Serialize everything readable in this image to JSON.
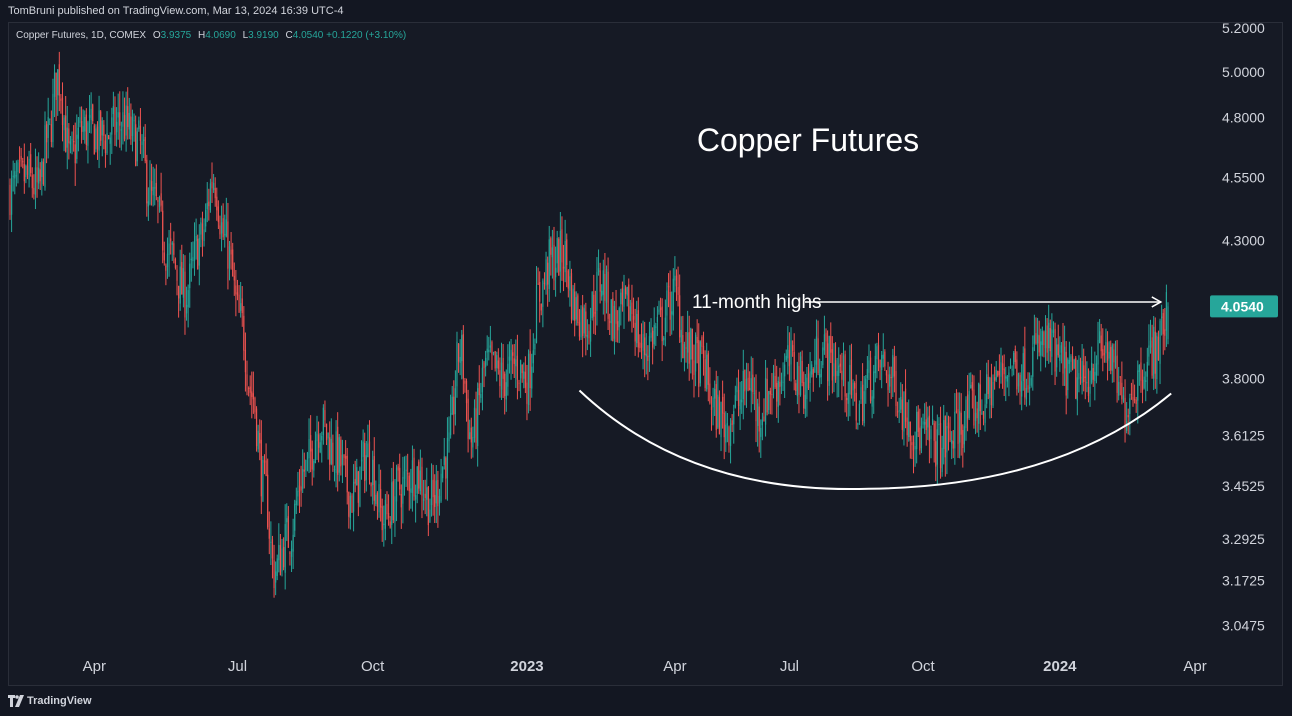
{
  "header": {
    "published_text": "TomBruni published on TradingView.com, Mar 13, 2024 16:39 UTC-4"
  },
  "legend": {
    "symbol": "Copper Futures, 1D, COMEX",
    "o_label": "O",
    "o_value": "3.9375",
    "h_label": "H",
    "h_value": "4.0690",
    "l_label": "L",
    "l_value": "3.9190",
    "c_label": "C",
    "c_value": "4.0540",
    "change": "+0.1220 (+3.10%)"
  },
  "footer": {
    "brand": "TradingView",
    "logo_icon": "tradingview-logo-icon"
  },
  "colors": {
    "up": "#26a69a",
    "down": "#ef5350",
    "background": "#161a25",
    "text": "#d1d4dc",
    "price_tag": "#26a69a"
  },
  "chart_data": {
    "type": "candlestick",
    "title": "Copper Futures",
    "annotation": "11-month highs",
    "last_price": "4.0540",
    "y_ticks": [
      "5.2000",
      "5.0000",
      "4.8000",
      "4.5500",
      "4.3000",
      "3.8000",
      "3.6125",
      "3.4525",
      "3.2925",
      "3.1725",
      "3.0475"
    ],
    "x_ticks": [
      "Apr",
      "Jul",
      "Oct",
      "2023",
      "Apr",
      "Jul",
      "Oct",
      "2024",
      "Apr"
    ],
    "x_ticks_bold": [
      false,
      false,
      false,
      true,
      false,
      false,
      false,
      true,
      false
    ],
    "ylim": [
      3.0,
      5.2
    ],
    "scale": "log",
    "anchors": [
      [
        0,
        4.5
      ],
      [
        10,
        4.55
      ],
      [
        18,
        4.5
      ],
      [
        24,
        4.72
      ],
      [
        30,
        4.98
      ],
      [
        38,
        4.62
      ],
      [
        45,
        4.75
      ],
      [
        60,
        4.72
      ],
      [
        70,
        4.78
      ],
      [
        80,
        4.7
      ],
      [
        90,
        4.45
      ],
      [
        100,
        4.25
      ],
      [
        110,
        4.1
      ],
      [
        120,
        4.3
      ],
      [
        128,
        4.55
      ],
      [
        135,
        4.3
      ],
      [
        145,
        4.0
      ],
      [
        152,
        3.75
      ],
      [
        160,
        3.45
      ],
      [
        166,
        3.2
      ],
      [
        175,
        3.3
      ],
      [
        185,
        3.5
      ],
      [
        195,
        3.65
      ],
      [
        205,
        3.55
      ],
      [
        215,
        3.42
      ],
      [
        225,
        3.55
      ],
      [
        235,
        3.35
      ],
      [
        245,
        3.45
      ],
      [
        255,
        3.5
      ],
      [
        265,
        3.4
      ],
      [
        275,
        3.55
      ],
      [
        283,
        3.9
      ],
      [
        290,
        3.6
      ],
      [
        300,
        3.85
      ],
      [
        310,
        3.8
      ],
      [
        318,
        3.85
      ],
      [
        325,
        3.8
      ],
      [
        333,
        4.1
      ],
      [
        340,
        4.22
      ],
      [
        348,
        4.25
      ],
      [
        355,
        4.05
      ],
      [
        362,
        4.0
      ],
      [
        372,
        4.15
      ],
      [
        380,
        4.0
      ],
      [
        390,
        4.05
      ],
      [
        398,
        3.9
      ],
      [
        408,
        3.98
      ],
      [
        418,
        4.1
      ],
      [
        425,
        3.9
      ],
      [
        435,
        3.85
      ],
      [
        443,
        3.7
      ],
      [
        450,
        3.65
      ],
      [
        458,
        3.72
      ],
      [
        465,
        3.8
      ],
      [
        470,
        3.68
      ],
      [
        480,
        3.78
      ],
      [
        490,
        3.85
      ],
      [
        500,
        3.78
      ],
      [
        510,
        3.9
      ],
      [
        518,
        3.85
      ],
      [
        525,
        3.8
      ],
      [
        533,
        3.7
      ],
      [
        540,
        3.8
      ],
      [
        547,
        3.85
      ],
      [
        555,
        3.8
      ],
      [
        562,
        3.7
      ],
      [
        570,
        3.62
      ],
      [
        578,
        3.6
      ],
      [
        585,
        3.58
      ],
      [
        590,
        3.6
      ],
      [
        598,
        3.65
      ],
      [
        605,
        3.7
      ],
      [
        612,
        3.72
      ],
      [
        620,
        3.8
      ],
      [
        630,
        3.85
      ],
      [
        638,
        3.82
      ],
      [
        645,
        3.9
      ],
      [
        652,
        3.92
      ],
      [
        660,
        3.85
      ],
      [
        668,
        3.8
      ],
      [
        675,
        3.78
      ],
      [
        683,
        3.88
      ],
      [
        690,
        3.9
      ],
      [
        695,
        3.8
      ],
      [
        700,
        3.7
      ],
      [
        707,
        3.78
      ],
      [
        714,
        3.86
      ],
      [
        720,
        3.9
      ],
      [
        726,
        3.99
      ],
      [
        728,
        4.054
      ]
    ],
    "n_bars": 729,
    "annotation_arrow": {
      "from_x": 496,
      "to_x": 726,
      "y": 4.07
    },
    "rounding_curve": {
      "start": [
        358,
        3.76
      ],
      "bottom": [
        540,
        3.45
      ],
      "end": [
        730,
        3.75
      ]
    }
  }
}
